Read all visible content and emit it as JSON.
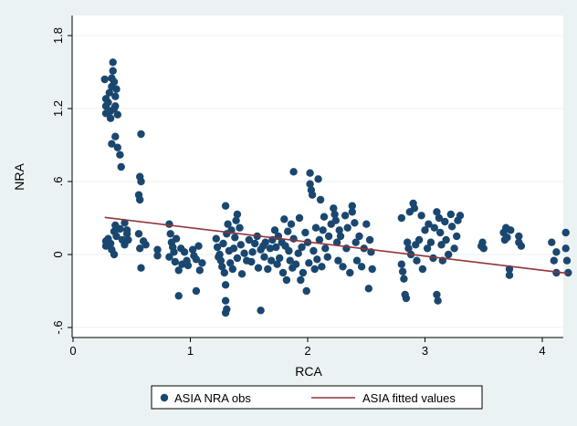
{
  "chart_data": {
    "type": "scatter",
    "title": "",
    "xlabel": "RCA",
    "ylabel": "NRA",
    "xlim": [
      0,
      4.25
    ],
    "ylim": [
      -0.7,
      1.9
    ],
    "x_ticks": [
      0,
      1,
      2,
      3,
      4
    ],
    "x_tick_labels": [
      "0",
      "1",
      "2",
      "3",
      "4"
    ],
    "y_ticks": [
      -0.6,
      0,
      0.6,
      1.2,
      1.8
    ],
    "y_tick_labels": [
      "-.6",
      "0",
      ".6",
      "1.2",
      "1.8"
    ],
    "grid": "horizontal",
    "legend_position": "bottom",
    "colors": {
      "background": "#eaf2f3",
      "plot_area": "#ffffff",
      "points": "#1a476f",
      "fit_line": "#90353b",
      "grid": "#eaf2f3"
    },
    "series": [
      {
        "name": "ASIA NRA obs",
        "kind": "scatter",
        "points": [
          [
            0.27,
            1.44
          ],
          [
            0.28,
            1.28
          ],
          [
            0.28,
            1.22
          ],
          [
            0.28,
            1.16
          ],
          [
            0.3,
            1.25
          ],
          [
            0.31,
            1.33
          ],
          [
            0.32,
            1.18
          ],
          [
            0.32,
            1.12
          ],
          [
            0.33,
            1.38
          ],
          [
            0.33,
            1.45
          ],
          [
            0.34,
            1.51
          ],
          [
            0.34,
            1.58
          ],
          [
            0.35,
            1.42
          ],
          [
            0.35,
            1.2
          ],
          [
            0.36,
            1.3
          ],
          [
            0.36,
            1.22
          ],
          [
            0.37,
            1.36
          ],
          [
            0.38,
            1.15
          ],
          [
            0.33,
            0.91
          ],
          [
            0.36,
            0.97
          ],
          [
            0.38,
            0.88
          ],
          [
            0.4,
            0.82
          ],
          [
            0.41,
            0.72
          ],
          [
            0.58,
            0.99
          ],
          [
            0.57,
            0.64
          ],
          [
            0.58,
            0.6
          ],
          [
            0.56,
            0.49
          ],
          [
            0.57,
            0.45
          ],
          [
            0.28,
            0.07
          ],
          [
            0.28,
            0.11
          ],
          [
            0.3,
            0.13
          ],
          [
            0.32,
            0.09
          ],
          [
            0.33,
            0.04
          ],
          [
            0.35,
            0.0
          ],
          [
            0.35,
            0.19
          ],
          [
            0.36,
            0.24
          ],
          [
            0.37,
            0.15
          ],
          [
            0.4,
            0.21
          ],
          [
            0.42,
            0.12
          ],
          [
            0.44,
            0.26
          ],
          [
            0.44,
            0.08
          ],
          [
            0.46,
            0.17
          ],
          [
            0.46,
            0.2
          ],
          [
            0.47,
            0.12
          ],
          [
            0.56,
            0.17
          ],
          [
            0.57,
            0.05
          ],
          [
            0.58,
            -0.11
          ],
          [
            0.6,
            0.11
          ],
          [
            0.62,
            0.08
          ],
          [
            0.72,
            -0.01
          ],
          [
            0.72,
            0.04
          ],
          [
            0.82,
            0.25
          ],
          [
            0.82,
            -0.02
          ],
          [
            0.83,
            0.17
          ],
          [
            0.84,
            0.1
          ],
          [
            0.85,
            0.06
          ],
          [
            0.86,
            0.02
          ],
          [
            0.87,
            -0.06
          ],
          [
            0.88,
            0.13
          ],
          [
            0.9,
            -0.13
          ],
          [
            0.92,
            0.05
          ],
          [
            0.93,
            -0.08
          ],
          [
            0.95,
            0.02
          ],
          [
            0.97,
            -0.05
          ],
          [
            0.9,
            -0.34
          ],
          [
            0.98,
            -0.09
          ],
          [
            1.02,
            0.04
          ],
          [
            1.03,
            -0.01
          ],
          [
            1.05,
            -0.04
          ],
          [
            1.07,
            0.07
          ],
          [
            1.08,
            -0.13
          ],
          [
            1.1,
            -0.07
          ],
          [
            1.05,
            -0.3
          ],
          [
            1.22,
            0.13
          ],
          [
            1.23,
            0.06
          ],
          [
            1.24,
            -0.02
          ],
          [
            1.25,
            0.0
          ],
          [
            1.26,
            -0.05
          ],
          [
            1.27,
            -0.1
          ],
          [
            1.28,
            0.09
          ],
          [
            1.29,
            -0.15
          ],
          [
            1.3,
            -0.25
          ],
          [
            1.3,
            -0.38
          ],
          [
            1.31,
            -0.45
          ],
          [
            1.3,
            -0.48
          ],
          [
            1.3,
            0.4
          ],
          [
            1.31,
            0.17
          ],
          [
            1.32,
            0.25
          ],
          [
            1.33,
            0.03
          ],
          [
            1.34,
            -0.07
          ],
          [
            1.35,
            0.2
          ],
          [
            1.36,
            -0.12
          ],
          [
            1.37,
            0.05
          ],
          [
            1.38,
            0.14
          ],
          [
            1.39,
            0.28
          ],
          [
            1.4,
            0.33
          ],
          [
            1.4,
            -0.03
          ],
          [
            1.42,
            0.22
          ],
          [
            1.43,
            0.08
          ],
          [
            1.44,
            -0.16
          ],
          [
            1.46,
            0.01
          ],
          [
            1.48,
            -0.05
          ],
          [
            1.5,
            0.12
          ],
          [
            1.52,
            -0.06
          ],
          [
            1.53,
            0.02
          ],
          [
            1.55,
            0.09
          ],
          [
            1.57,
            0.15
          ],
          [
            1.58,
            -0.11
          ],
          [
            1.6,
            0.04
          ],
          [
            1.6,
            -0.46
          ],
          [
            1.62,
            0.07
          ],
          [
            1.63,
            -0.02
          ],
          [
            1.64,
            0.1
          ],
          [
            1.66,
            -0.12
          ],
          [
            1.68,
            0.05
          ],
          [
            1.69,
            -0.05
          ],
          [
            1.7,
            0.12
          ],
          [
            1.72,
            0.2
          ],
          [
            1.73,
            0.06
          ],
          [
            1.74,
            -0.08
          ],
          [
            1.75,
            0.15
          ],
          [
            1.76,
            -0.03
          ],
          [
            1.78,
            0.1
          ],
          [
            1.79,
            -0.15
          ],
          [
            1.8,
            0.29
          ],
          [
            1.81,
            0.07
          ],
          [
            1.82,
            -0.21
          ],
          [
            1.83,
            0.19
          ],
          [
            1.84,
            0.03
          ],
          [
            1.85,
            -0.05
          ],
          [
            1.86,
            0.25
          ],
          [
            1.87,
            -0.11
          ],
          [
            1.88,
            0.68
          ],
          [
            1.88,
            0.13
          ],
          [
            1.9,
            -0.08
          ],
          [
            1.92,
            0.01
          ],
          [
            1.93,
            0.3
          ],
          [
            1.94,
            -0.21
          ],
          [
            1.95,
            0.06
          ],
          [
            1.96,
            -0.15
          ],
          [
            1.98,
            0.18
          ],
          [
            1.99,
            -0.3
          ],
          [
            2.0,
            0.1
          ],
          [
            2.01,
            -0.07
          ],
          [
            2.02,
            0.67
          ],
          [
            2.02,
            0.58
          ],
          [
            2.03,
            0.53
          ],
          [
            2.04,
            0.49
          ],
          [
            2.05,
            0.03
          ],
          [
            2.06,
            -0.12
          ],
          [
            2.07,
            0.22
          ],
          [
            2.08,
            -0.04
          ],
          [
            2.09,
            0.62
          ],
          [
            2.1,
            0.12
          ],
          [
            2.11,
            0.45
          ],
          [
            2.12,
            -0.1
          ],
          [
            2.13,
            0.2
          ],
          [
            2.14,
            0.31
          ],
          [
            2.15,
            0.05
          ],
          [
            2.17,
            -0.02
          ],
          [
            2.18,
            0.15
          ],
          [
            2.2,
            0.25
          ],
          [
            2.22,
            0.38
          ],
          [
            2.23,
            0.33
          ],
          [
            2.24,
            0.28
          ],
          [
            2.25,
            0.1
          ],
          [
            2.26,
            -0.05
          ],
          [
            2.27,
            0.2
          ],
          [
            2.28,
            0.15
          ],
          [
            2.3,
            -0.1
          ],
          [
            2.32,
            0.32
          ],
          [
            2.33,
            0.05
          ],
          [
            2.34,
            0.22
          ],
          [
            2.36,
            -0.15
          ],
          [
            2.38,
            0.4
          ],
          [
            2.38,
            0.35
          ],
          [
            2.4,
            0.26
          ],
          [
            2.41,
            0.1
          ],
          [
            2.42,
            -0.05
          ],
          [
            2.44,
            0.15
          ],
          [
            2.46,
            -0.1
          ],
          [
            2.48,
            0.05
          ],
          [
            2.5,
            0.25
          ],
          [
            2.52,
            -0.28
          ],
          [
            2.53,
            0.12
          ],
          [
            2.54,
            0.02
          ],
          [
            2.55,
            -0.12
          ],
          [
            2.8,
            0.3
          ],
          [
            2.8,
            -0.08
          ],
          [
            2.81,
            -0.14
          ],
          [
            2.82,
            -0.2
          ],
          [
            2.83,
            -0.33
          ],
          [
            2.84,
            -0.36
          ],
          [
            2.85,
            0.1
          ],
          [
            2.86,
            0.05
          ],
          [
            2.87,
            0.35
          ],
          [
            2.88,
            0.0
          ],
          [
            2.9,
            0.42
          ],
          [
            2.91,
            0.38
          ],
          [
            2.92,
            0.08
          ],
          [
            2.93,
            -0.05
          ],
          [
            2.95,
            0.12
          ],
          [
            2.97,
            0.32
          ],
          [
            2.98,
            -0.12
          ],
          [
            3.0,
            0.2
          ],
          [
            3.02,
            0.05
          ],
          [
            3.03,
            0.25
          ],
          [
            3.05,
            0.1
          ],
          [
            3.07,
            -0.03
          ],
          [
            3.08,
            0.22
          ],
          [
            3.1,
            0.35
          ],
          [
            3.1,
            -0.33
          ],
          [
            3.11,
            -0.38
          ],
          [
            3.12,
            0.3
          ],
          [
            3.13,
            0.18
          ],
          [
            3.14,
            0.08
          ],
          [
            3.15,
            -0.05
          ],
          [
            3.17,
            0.27
          ],
          [
            3.18,
            0.12
          ],
          [
            3.2,
            0.0
          ],
          [
            3.22,
            0.33
          ],
          [
            3.23,
            0.23
          ],
          [
            3.25,
            0.05
          ],
          [
            3.27,
            0.15
          ],
          [
            3.28,
            0.28
          ],
          [
            3.3,
            0.32
          ],
          [
            3.48,
            0.07
          ],
          [
            3.49,
            0.1
          ],
          [
            3.5,
            0.05
          ],
          [
            3.67,
            0.18
          ],
          [
            3.68,
            0.12
          ],
          [
            3.69,
            0.22
          ],
          [
            3.7,
            0.14
          ],
          [
            3.72,
            -0.12
          ],
          [
            3.72,
            -0.17
          ],
          [
            3.73,
            0.2
          ],
          [
            3.8,
            0.15
          ],
          [
            3.8,
            0.1
          ],
          [
            3.82,
            0.07
          ],
          [
            4.08,
            0.1
          ],
          [
            4.1,
            -0.05
          ],
          [
            4.12,
            0.02
          ],
          [
            4.12,
            -0.15
          ],
          [
            4.2,
            0.18
          ],
          [
            4.2,
            0.05
          ],
          [
            4.21,
            -0.05
          ],
          [
            4.22,
            -0.15
          ]
        ]
      },
      {
        "name": "ASIA fitted values",
        "kind": "line",
        "points": [
          [
            0.27,
            0.305
          ],
          [
            4.22,
            -0.155
          ]
        ]
      }
    ]
  }
}
